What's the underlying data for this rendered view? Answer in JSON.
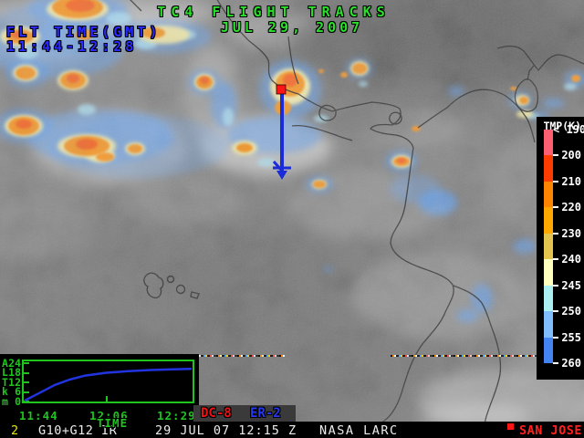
{
  "header": {
    "title": "TC4 FLIGHT TRACKS",
    "date": "JUL 29, 2007",
    "flt_time_label": "FLT TIME(GMT)",
    "flt_time_value": "11:44-12:28"
  },
  "colorbar": {
    "title": "TMP(K)",
    "ticks": [
      "< 190",
      "200",
      "210",
      "220",
      "230",
      "240",
      "245",
      "250",
      "255",
      "260"
    ],
    "segment_colors": [
      "#FF5F73",
      "#FF3C00",
      "#FF8400",
      "#FFA800",
      "#E2C44E",
      "#FFFFBE",
      "#ABEFF2",
      "#7FBDFF",
      "#4483F2"
    ]
  },
  "alt_plot": {
    "ylabel_letters": [
      "A",
      "L",
      "T",
      "k",
      "m"
    ],
    "ylabel_values": [
      "24",
      "18",
      "12",
      "6",
      "0"
    ],
    "x_ticks": [
      "11:44",
      "12:06",
      "12:29"
    ],
    "xlabel": "TIME"
  },
  "legend": {
    "dc8": "DC-8",
    "er2": "ER-2"
  },
  "status_bar": {
    "frame_number": "2",
    "product": "G10+G12 IR",
    "datetime": "29 JUL 07 12:15 Z",
    "org": "NASA LARC",
    "station": "SAN JOSE"
  },
  "colors": {
    "title_green": "#2BE02B",
    "plot_green": "#1FC41F",
    "flt_blue": "#2B2BFF",
    "track_blue": "#1C2BD8",
    "marker_red": "#FF1515",
    "dc8_red": "#EE1111",
    "er2_blue": "#2638F0",
    "station_red": "#FF2020",
    "frame_yellow": "#E6E600",
    "bar_white": "#ECECEC"
  },
  "chart_data": {
    "type": "line",
    "title": "",
    "xlabel": "TIME",
    "ylabel": "ALT km",
    "x": [
      "11:44",
      "11:48",
      "11:52",
      "11:56",
      "12:00",
      "12:06",
      "12:12",
      "12:18",
      "12:24",
      "12:29"
    ],
    "y": [
      0,
      5,
      10,
      13.5,
      16,
      18,
      19,
      19.8,
      20.3,
      20.6
    ],
    "ylim": [
      0,
      24
    ],
    "line_color": "#2233E0",
    "legend_position": "below-right",
    "grid": false
  }
}
